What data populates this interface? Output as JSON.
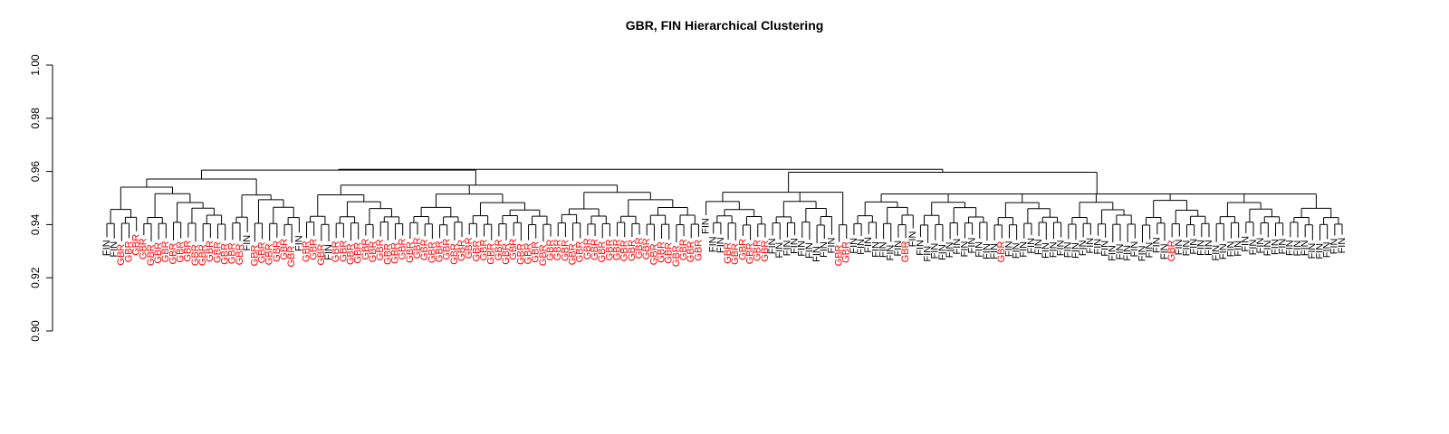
{
  "chart_data": {
    "type": "dendrogram",
    "title": "GBR, FIN Hierarchical Clustering",
    "xlabel": "",
    "ylabel": "",
    "ylim": [
      0.9,
      1.0
    ],
    "yticks": [
      "0.90",
      "0.92",
      "0.94",
      "0.96",
      "0.98",
      "1.00"
    ],
    "colors": {
      "GBR": "#ff0000",
      "FIN": "#000000",
      "branch": "#000000"
    },
    "leaf_labels": [
      "FIN",
      "FIN",
      "GBR",
      "GBR",
      "GBR",
      "GBR",
      "GBR",
      "GBR",
      "GBR",
      "GBR",
      "GBR",
      "GBR",
      "GBR",
      "GBR",
      "GBR",
      "GBR",
      "GBR",
      "GBR",
      "GBR",
      "GBR",
      "GBR",
      "GBR",
      "GBR",
      "FIN",
      "GBR",
      "GBR",
      "GBR",
      "GBR",
      "GBR",
      "FIN",
      "GBR",
      "GBR",
      "GBR",
      "GBR",
      "GBR",
      "FIN",
      "GBR",
      "GBR",
      "GBR",
      "GBR",
      "GBR",
      "GBR",
      "GBR",
      "GBR",
      "GBR",
      "GBR",
      "GBR",
      "GBR",
      "GBR",
      "GBR",
      "GBR",
      "GBR",
      "GBR",
      "GBR",
      "GBR",
      "GBR",
      "GBR",
      "GBR",
      "GBR",
      "GBR",
      "GBR",
      "GBR",
      "GBR",
      "GBR",
      "GBR",
      "GBR",
      "GBR",
      "GBR",
      "GBR",
      "GBR",
      "GBR",
      "GBR",
      "GBR",
      "GBR",
      "GBR",
      "GBR",
      "GBR",
      "GBR",
      "GBR",
      "GBR",
      "GBR",
      "GBR",
      "GBR",
      "GBR",
      "GBR",
      "GBR",
      "GBR",
      "GBR",
      "GBR",
      "GBR",
      "GBR",
      "GBR",
      "GBR",
      "GBR",
      "GBR",
      "GBR",
      "GBR",
      "GBR",
      "GBR",
      "GBR",
      "GBR",
      "GBR",
      "FIN",
      "FIN",
      "FIN",
      "GBR",
      "GBR",
      "GBR",
      "GBR",
      "GBR",
      "GBR",
      "FIN",
      "FIN",
      "FIN",
      "FIN",
      "FIN",
      "FIN",
      "FIN",
      "FIN",
      "FIN",
      "FIN",
      "FIN",
      "FIN",
      "GBR",
      "GBR",
      "FIN",
      "FIN",
      "FIN",
      "FIN",
      "FIN",
      "FIN",
      "FIN",
      "FIN",
      "FIN",
      "FIN",
      "FIN",
      "GBR",
      "FIN",
      "FIN",
      "FIN",
      "FIN",
      "FIN",
      "FIN",
      "FIN",
      "FIN",
      "FIN",
      "FIN",
      "FIN",
      "FIN",
      "FIN",
      "FIN",
      "FIN",
      "FIN",
      "FIN",
      "FIN",
      "FIN",
      "FIN",
      "GBR",
      "FIN",
      "FIN",
      "FIN",
      "FIN",
      "FIN",
      "FIN",
      "FIN",
      "FIN",
      "FIN",
      "FIN",
      "FIN",
      "FIN",
      "FIN",
      "FIN",
      "FIN",
      "FIN",
      "FIN",
      "FIN",
      "FIN",
      "FIN",
      "FIN",
      "GBR",
      "FIN",
      "FIN",
      "FIN",
      "FIN",
      "FIN",
      "FIN",
      "FIN",
      "FIN",
      "FIN",
      "FIN",
      "FIN",
      "FIN",
      "FIN",
      "FIN",
      "FIN",
      "FIN",
      "FIN",
      "FIN",
      "FIN",
      "FIN",
      "FIN",
      "FIN",
      "FIN",
      "FIN",
      "FIN",
      "FIN",
      "FIN",
      "FIN",
      "FIN"
    ],
    "tree": [
      [
        [
          [
            [
              [
                "FIN",
                "FIN"
              ],
              [
                [
                  "GBR",
                  "GBR"
                ],
                "GBR"
              ]
            ],
            [
              [
                [
                  "GBR",
                  "GBR"
                ],
                [
                  "GBR",
                  "GBR"
                ]
              ],
              [
                [
                  "GBR",
                  "GBR"
                ],
                [
                  [
                    "GBR",
                    "GBR"
                  ],
                  [
                    [
                      "GBR",
                      "GBR"
                    ],
                    [
                      "GBR",
                      "GBR"
                    ]
                  ]
                ]
              ]
            ]
          ],
          [
            [
              [
                "GBR",
                "GBR"
              ],
              "FIN"
            ],
            [
              [
                "GBR",
                "GBR"
              ],
              [
                [
                  "GBR",
                  "GBR"
                ],
                [
                  [
                    "GBR",
                    "GBR"
                  ],
                  "FIN"
                ]
              ]
            ]
          ]
        ],
        [
          [
            [
              [
                "GBR",
                "GBR"
              ],
              [
                "GBR",
                "FIN"
              ]
            ],
            [
              [
                [
                  "GBR",
                  "GBR"
                ],
                [
                  "GBR",
                  "GBR"
                ]
              ],
              [
                [
                  "GBR",
                  "GBR"
                ],
                [
                  [
                    "GBR",
                    "GBR"
                  ],
                  [
                    "GBR",
                    "GBR"
                  ]
                ]
              ]
            ]
          ],
          [
            [
              [
                [
                  "GBR",
                  "GBR"
                ],
                [
                  "GBR",
                  "GBR"
                ]
              ],
              [
                [
                  "GBR",
                  "GBR"
                ],
                [
                  "GBR",
                  "GBR"
                ]
              ]
            ],
            [
              [
                [
                  "GBR",
                  "GBR"
                ],
                [
                  "GBR",
                  "GBR"
                ]
              ],
              [
                [
                  [
                    "GBR",
                    "GBR"
                  ],
                  [
                    "GBR",
                    "GBR"
                  ]
                ],
                [
                  [
                    "GBR",
                    "GBR"
                  ],
                  [
                    "GBR",
                    "GBR"
                  ]
                ]
              ]
            ]
          ],
          [
            [
              [
                [
                  "GBR",
                  "GBR"
                ],
                [
                  "GBR",
                  "GBR"
                ]
              ],
              [
                [
                  "GBR",
                  "GBR"
                ],
                [
                  "GBR",
                  "GBR"
                ]
              ]
            ],
            [
              [
                [
                  "GBR",
                  "GBR"
                ],
                [
                  "GBR",
                  "GBR"
                ]
              ],
              [
                [
                  [
                    "GBR",
                    "GBR"
                  ],
                  [
                    "GBR",
                    "GBR"
                  ]
                ],
                [
                  [
                    "GBR",
                    "GBR"
                  ],
                  [
                    "GBR",
                    "GBR"
                  ]
                ]
              ]
            ]
          ]
        ]
      ],
      [
        [
          [
            "FIN",
            [
              [
                [
                  "FIN",
                  "FIN"
                ],
                [
                  "GBR",
                  "GBR"
                ]
              ],
              [
                [
                  "GBR",
                  "GBR"
                ],
                [
                  "GBR",
                  "GBR"
                ]
              ]
            ]
          ],
          [
            [
              [
                "FIN",
                "FIN"
              ],
              [
                "FIN",
                "FIN"
              ]
            ],
            [
              [
                "FIN",
                "FIN"
              ],
              [
                [
                  "FIN",
                  "FIN"
                ],
                "FIN"
              ]
            ]
          ],
          [
            "GBR",
            "GBR"
          ]
        ],
        [
          [
            [
              [
                "FIN",
                "FIN"
              ],
              [
                "FIN",
                "FIN"
              ]
            ],
            [
              [
                "FIN",
                "FIN"
              ],
              [
                [
                  "FIN",
                  "GBR"
                ],
                "FIN"
              ]
            ]
          ],
          [
            [
              [
                "FIN",
                "FIN"
              ],
              [
                "FIN",
                "FIN"
              ]
            ],
            [
              [
                "FIN",
                "FIN"
              ],
              [
                [
                  "FIN",
                  "FIN"
                ],
                [
                  "FIN",
                  "FIN"
                ]
              ]
            ]
          ],
          [
            [
              [
                "FIN",
                "GBR"
              ],
              [
                "FIN",
                "FIN"
              ]
            ],
            [
              [
                "FIN",
                "FIN"
              ],
              [
                [
                  "FIN",
                  "FIN"
                ],
                [
                  "FIN",
                  "FIN"
                ]
              ]
            ]
          ],
          [
            [
              [
                "FIN",
                "FIN"
              ],
              [
                "FIN",
                "FIN"
              ]
            ],
            [
              [
                "FIN",
                "FIN"
              ],
              [
                [
                  "FIN",
                  "FIN"
                ],
                [
                  "FIN",
                  "FIN"
                ]
              ]
            ]
          ],
          [
            [
              [
                "FIN",
                "FIN"
              ],
              [
                "FIN",
                "FIN"
              ]
            ],
            [
              [
                "GBR",
                "FIN"
              ],
              [
                [
                  "FIN",
                  "FIN"
                ],
                [
                  "FIN",
                  "FIN"
                ]
              ]
            ]
          ],
          [
            [
              [
                "FIN",
                "FIN"
              ],
              [
                "FIN",
                "FIN"
              ]
            ],
            [
              [
                "FIN",
                "FIN"
              ],
              [
                [
                  "FIN",
                  "FIN"
                ],
                [
                  "FIN",
                  "FIN"
                ]
              ]
            ]
          ],
          [
            [
              [
                "FIN",
                "FIN"
              ],
              [
                "FIN",
                "FIN"
              ]
            ],
            [
              [
                "FIN",
                "FIN"
              ],
              [
                "FIN",
                "FIN"
              ]
            ]
          ]
        ]
      ]
    ],
    "notes_heights": {
      "root": 0.9608,
      "left_major": 0.9605,
      "right_major": 0.9597,
      "lowest_merges": [
        0.9147,
        0.9205,
        0.9355,
        0.9355
      ]
    }
  }
}
